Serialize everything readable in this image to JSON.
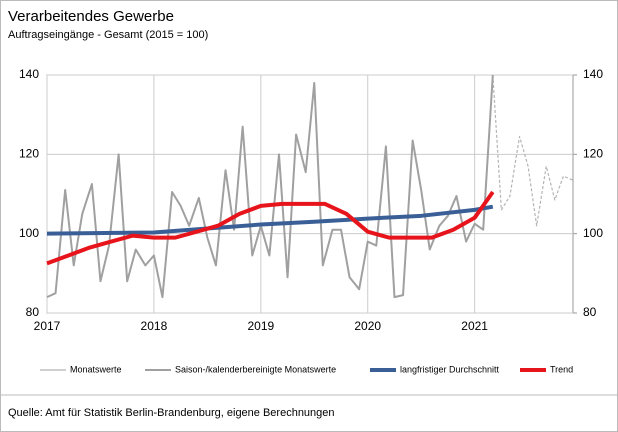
{
  "chart_data": {
    "type": "line",
    "title": "Verarbeitendes Gewerbe",
    "subtitle": "Auftragseingänge - Gesamt (2015 = 100)",
    "source": "Quelle: Amt für Statistik Berlin-Brandenburg, eigene Berechnungen",
    "xlim": [
      2017,
      2021.92
    ],
    "xticks": [
      2017,
      2018,
      2019,
      2020,
      2021
    ],
    "ylim": [
      80,
      140
    ],
    "yticks": [
      80,
      100,
      120,
      140
    ],
    "y2lim": [
      80,
      140
    ],
    "y2ticks": [
      80,
      100,
      120,
      140
    ],
    "grid": true,
    "series": [
      {
        "name": "Monatswerte",
        "color": "#b4b4b4",
        "width": 1.2,
        "dashed": true,
        "x": [
          2021.17,
          2021.25,
          2021.33,
          2021.42,
          2021.5,
          2021.58,
          2021.67,
          2021.75,
          2021.83,
          2021.92
        ],
        "values": [
          140,
          106,
          109.5,
          124.5,
          117,
          102,
          117,
          108.5,
          114.5,
          113.5
        ]
      },
      {
        "name": "Saison-/kalenderbereinigte Monatswerte",
        "color": "#a0a0a0",
        "width": 2,
        "x": [
          2017,
          2017.08,
          2017.17,
          2017.25,
          2017.33,
          2017.42,
          2017.5,
          2017.58,
          2017.67,
          2017.75,
          2017.83,
          2017.92,
          2018,
          2018.08,
          2018.17,
          2018.25,
          2018.33,
          2018.42,
          2018.5,
          2018.58,
          2018.67,
          2018.75,
          2018.83,
          2018.92,
          2019,
          2019.08,
          2019.17,
          2019.25,
          2019.33,
          2019.42,
          2019.5,
          2019.58,
          2019.67,
          2019.75,
          2019.83,
          2019.92,
          2020,
          2020.08,
          2020.17,
          2020.25,
          2020.33,
          2020.42,
          2020.5,
          2020.58,
          2020.67,
          2020.75,
          2020.83,
          2020.92,
          2021,
          2021.08,
          2021.17
        ],
        "values": [
          84,
          85,
          111,
          92,
          105,
          112.5,
          88,
          97,
          120,
          88,
          96,
          92,
          94.5,
          84,
          110.5,
          107,
          102,
          109,
          99,
          92,
          116,
          101,
          127,
          94.5,
          102,
          94.5,
          120,
          89,
          125,
          115.5,
          138,
          92,
          101,
          101,
          89,
          86,
          98,
          97,
          122,
          84,
          84.5,
          123.5,
          111,
          96,
          102,
          104.5,
          109.5,
          98,
          102.5,
          101,
          140
        ]
      },
      {
        "name": "langfristiger Durchschnitt",
        "color": "#3a5f96",
        "width": 4,
        "x": [
          2017,
          2018,
          2018.5,
          2019,
          2019.5,
          2020,
          2020.5,
          2021,
          2021.17
        ],
        "values": [
          100,
          100.3,
          101.3,
          102.3,
          103,
          103.8,
          104.5,
          106,
          106.8
        ]
      },
      {
        "name": "Trend",
        "color": "#e8141c",
        "width": 4,
        "x": [
          2017,
          2017.2,
          2017.4,
          2017.6,
          2017.8,
          2018,
          2018.2,
          2018.4,
          2018.6,
          2018.8,
          2019,
          2019.2,
          2019.4,
          2019.6,
          2019.8,
          2020,
          2020.2,
          2020.4,
          2020.6,
          2020.8,
          2021,
          2021.17
        ],
        "values": [
          92.5,
          94.5,
          96.5,
          98,
          99.5,
          99,
          99,
          100.5,
          102,
          105,
          107,
          107.5,
          107.5,
          107.5,
          105,
          100.5,
          99,
          99,
          99,
          101,
          104,
          110.5
        ]
      }
    ]
  }
}
